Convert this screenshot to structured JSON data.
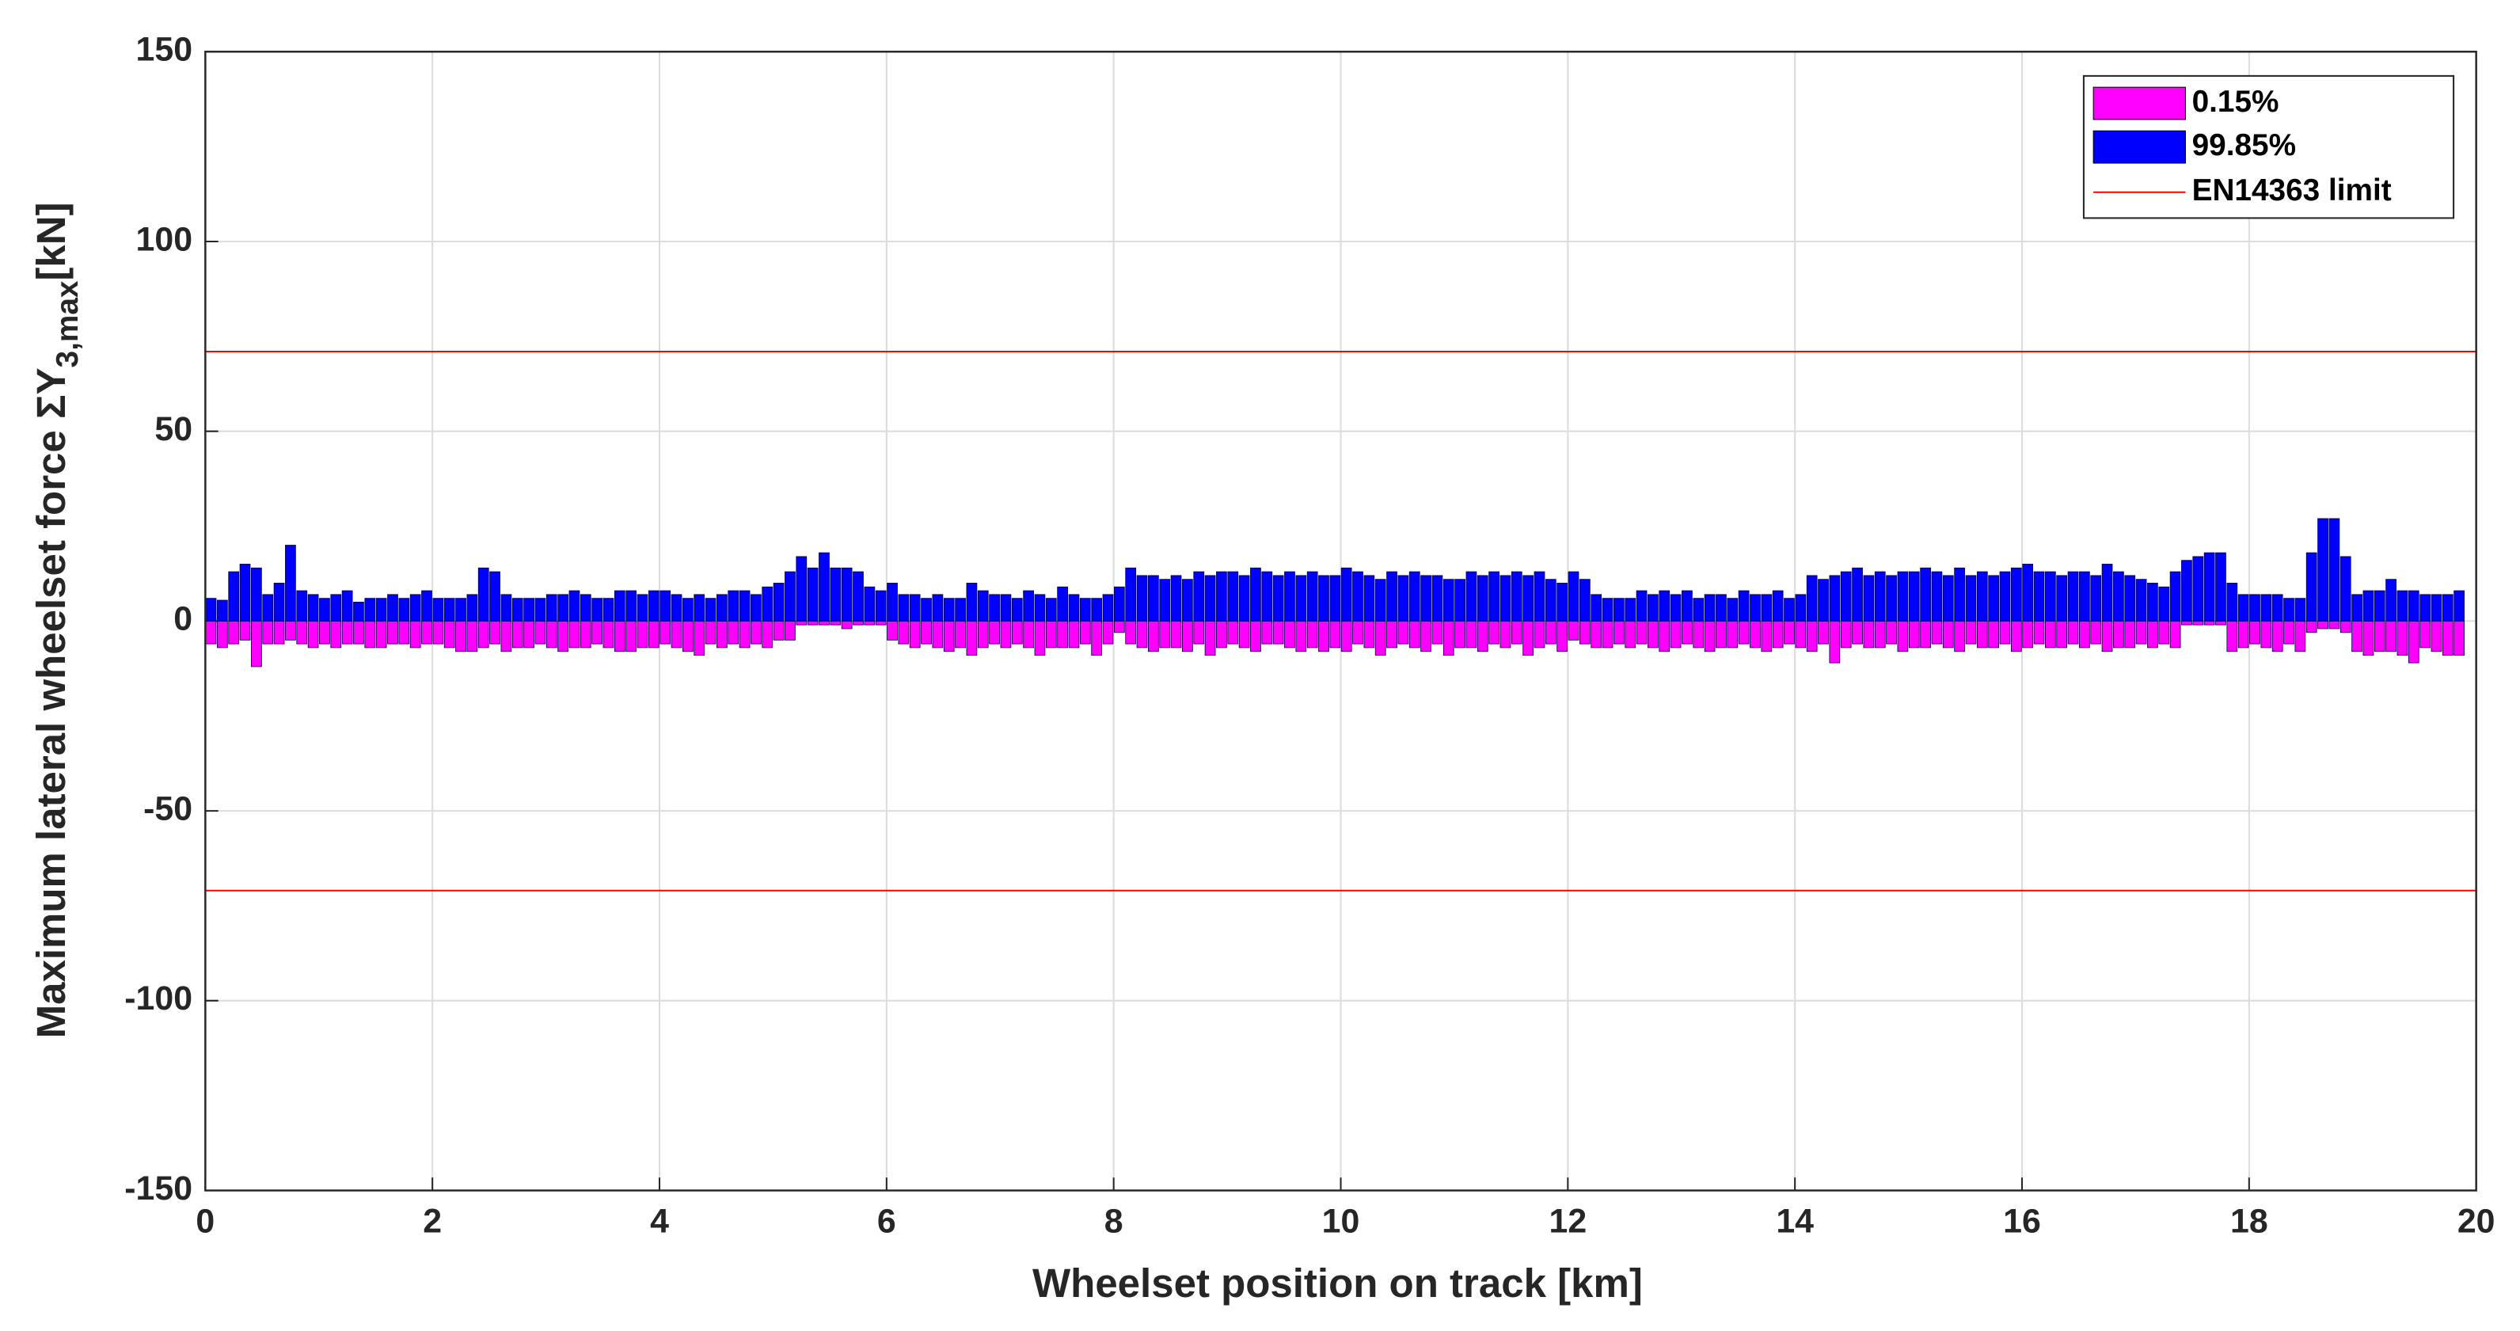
{
  "chart_data": {
    "type": "bar",
    "xlabel": "Wheelset position on track [km]",
    "ylabel": "Maximum lateral wheelset force ΣY",
    "ylabel_sub": "3,max",
    "ylabel_unit": "[kN]",
    "xlim": [
      0,
      20
    ],
    "ylim": [
      -150,
      150
    ],
    "xticks": [
      0,
      2,
      4,
      6,
      8,
      10,
      12,
      14,
      16,
      18,
      20
    ],
    "yticks": [
      -150,
      -100,
      -50,
      0,
      50,
      100,
      150
    ],
    "grid": true,
    "legend": "upper right",
    "x": [
      0.05,
      0.15,
      0.25,
      0.35,
      0.45,
      0.55,
      0.65,
      0.75,
      0.85,
      0.95,
      1.05,
      1.15,
      1.25,
      1.35,
      1.45,
      1.55,
      1.65,
      1.75,
      1.85,
      1.95,
      2.05,
      2.15,
      2.25,
      2.35,
      2.45,
      2.55,
      2.65,
      2.75,
      2.85,
      2.95,
      3.05,
      3.15,
      3.25,
      3.35,
      3.45,
      3.55,
      3.65,
      3.75,
      3.85,
      3.95,
      4.05,
      4.15,
      4.25,
      4.35,
      4.45,
      4.55,
      4.65,
      4.75,
      4.85,
      4.95,
      5.05,
      5.15,
      5.25,
      5.35,
      5.45,
      5.55,
      5.65,
      5.75,
      5.85,
      5.95,
      6.05,
      6.15,
      6.25,
      6.35,
      6.45,
      6.55,
      6.65,
      6.75,
      6.85,
      6.95,
      7.05,
      7.15,
      7.25,
      7.35,
      7.45,
      7.55,
      7.65,
      7.75,
      7.85,
      7.95,
      8.05,
      8.15,
      8.25,
      8.35,
      8.45,
      8.55,
      8.65,
      8.75,
      8.85,
      8.95,
      9.05,
      9.15,
      9.25,
      9.35,
      9.45,
      9.55,
      9.65,
      9.75,
      9.85,
      9.95,
      10.05,
      10.15,
      10.25,
      10.35,
      10.45,
      10.55,
      10.65,
      10.75,
      10.85,
      10.95,
      11.05,
      11.15,
      11.25,
      11.35,
      11.45,
      11.55,
      11.65,
      11.75,
      11.85,
      11.95,
      12.05,
      12.15,
      12.25,
      12.35,
      12.45,
      12.55,
      12.65,
      12.75,
      12.85,
      12.95,
      13.05,
      13.15,
      13.25,
      13.35,
      13.45,
      13.55,
      13.65,
      13.75,
      13.85,
      13.95,
      14.05,
      14.15,
      14.25,
      14.35,
      14.45,
      14.55,
      14.65,
      14.75,
      14.85,
      14.95,
      15.05,
      15.15,
      15.25,
      15.35,
      15.45,
      15.55,
      15.65,
      15.75,
      15.85,
      15.95,
      16.05,
      16.15,
      16.25,
      16.35,
      16.45,
      16.55,
      16.65,
      16.75,
      16.85,
      16.95,
      17.05,
      17.15,
      17.25,
      17.35,
      17.45,
      17.55,
      17.65,
      17.75,
      17.85,
      17.95,
      18.05,
      18.15,
      18.25,
      18.35,
      18.45,
      18.55,
      18.65,
      18.75,
      18.85,
      18.95,
      19.05,
      19.15,
      19.25,
      19.35,
      19.45,
      19.55,
      19.65,
      19.75,
      19.85
    ],
    "series": [
      {
        "name": "0.15%",
        "color": "#ff00ff",
        "values": [
          -6,
          -7,
          -6,
          -5,
          -12,
          -6,
          -6,
          -5,
          -6,
          -7,
          -6,
          -7,
          -6,
          -6,
          -7,
          -7,
          -6,
          -6,
          -7,
          -6,
          -6,
          -7,
          -8,
          -8,
          -7,
          -6,
          -8,
          -7,
          -7,
          -6,
          -7,
          -8,
          -7,
          -7,
          -6,
          -7,
          -8,
          -8,
          -7,
          -7,
          -6,
          -7,
          -8,
          -9,
          -6,
          -7,
          -6,
          -7,
          -6,
          -7,
          -5,
          -5,
          -1,
          -1,
          -1,
          -1,
          -2,
          -1,
          -1,
          -1,
          -5,
          -6,
          -7,
          -6,
          -7,
          -8,
          -7,
          -9,
          -7,
          -6,
          -7,
          -6,
          -7,
          -9,
          -7,
          -7,
          -7,
          -6,
          -9,
          -6,
          -3,
          -6,
          -7,
          -8,
          -7,
          -7,
          -8,
          -6,
          -9,
          -7,
          -6,
          -7,
          -8,
          -6,
          -6,
          -7,
          -8,
          -7,
          -8,
          -7,
          -8,
          -6,
          -7,
          -9,
          -7,
          -6,
          -7,
          -8,
          -6,
          -9,
          -7,
          -7,
          -8,
          -6,
          -7,
          -6,
          -9,
          -7,
          -6,
          -8,
          -5,
          -6,
          -7,
          -7,
          -6,
          -7,
          -6,
          -7,
          -8,
          -7,
          -6,
          -7,
          -8,
          -7,
          -7,
          -6,
          -7,
          -8,
          -7,
          -6,
          -7,
          -8,
          -6,
          -11,
          -7,
          -6,
          -7,
          -7,
          -6,
          -8,
          -7,
          -7,
          -6,
          -7,
          -8,
          -6,
          -7,
          -7,
          -6,
          -8,
          -7,
          -6,
          -7,
          -7,
          -6,
          -7,
          -6,
          -8,
          -7,
          -7,
          -6,
          -7,
          -6,
          -7,
          -1,
          -1,
          -1,
          -1,
          -8,
          -7,
          -6,
          -7,
          -8,
          -6,
          -8,
          -3,
          -2,
          -2,
          -3,
          -8,
          -9,
          -8,
          -8,
          -9,
          -11,
          -7,
          -8,
          -9,
          -9
        ]
      },
      {
        "name": "99.85%",
        "color": "#0000ff",
        "values": [
          6,
          5.5,
          13,
          15,
          14,
          7,
          10,
          20,
          8,
          7,
          6,
          7,
          8,
          5,
          6,
          6,
          7,
          6,
          7,
          8,
          6,
          6,
          6,
          7,
          14,
          13,
          7,
          6,
          6,
          6,
          7,
          7,
          8,
          7,
          6,
          6,
          8,
          8,
          7,
          8,
          8,
          7,
          6,
          7,
          6,
          7,
          8,
          8,
          7,
          9,
          10,
          13,
          17,
          14,
          18,
          14,
          14,
          13,
          9,
          8,
          10,
          7,
          7,
          6,
          7,
          6,
          6,
          10,
          8,
          7,
          7,
          6,
          8,
          7,
          6,
          9,
          7,
          6,
          6,
          7,
          9,
          14,
          12,
          12,
          11,
          12,
          11,
          13,
          12,
          13,
          13,
          12,
          14,
          13,
          12,
          13,
          12,
          13,
          12,
          12,
          14,
          13,
          12,
          11,
          13,
          12,
          13,
          12,
          12,
          11,
          11,
          13,
          12,
          13,
          12,
          13,
          12,
          13,
          11,
          10,
          13,
          11,
          7,
          6,
          6,
          6,
          8,
          7,
          8,
          7,
          8,
          6,
          7,
          7,
          6,
          8,
          7,
          7,
          8,
          6,
          7,
          12,
          11,
          12,
          13,
          14,
          12,
          13,
          12,
          13,
          13,
          14,
          13,
          12,
          14,
          12,
          13,
          12,
          13,
          14,
          15,
          13,
          13,
          12,
          13,
          13,
          12,
          15,
          13,
          12,
          11,
          10,
          9,
          13,
          16,
          17,
          18,
          18,
          10,
          7,
          7,
          7,
          7,
          6,
          6,
          18,
          27,
          27,
          17,
          7,
          8,
          8,
          11,
          8,
          8,
          7,
          7,
          7,
          8
        ]
      }
    ],
    "limit": {
      "name": "EN14363 limit",
      "color": "#ff0000",
      "values": [
        71,
        -71
      ]
    }
  }
}
